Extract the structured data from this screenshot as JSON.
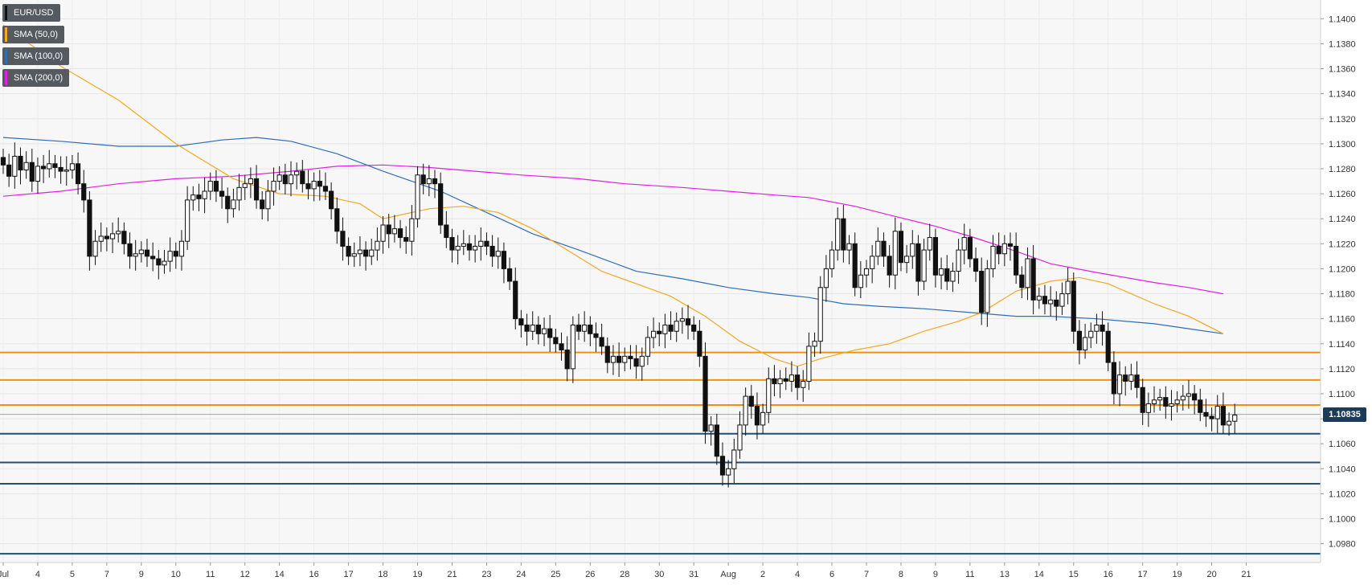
{
  "chart_data": {
    "type": "candlestick",
    "symbol": "EUR/USD",
    "last_price": "1.10835",
    "ylim": [
      1.0965,
      1.1415
    ],
    "y_ticks": [
      "1.1400",
      "1.1380",
      "1.1360",
      "1.1340",
      "1.1320",
      "1.1300",
      "1.1280",
      "1.1260",
      "1.1240",
      "1.1220",
      "1.1200",
      "1.1180",
      "1.1160",
      "1.1140",
      "1.1120",
      "1.1100",
      "1.1080",
      "1.1060",
      "1.1040",
      "1.1020",
      "1.1000",
      "1.0980"
    ],
    "x_ticks": [
      {
        "label": "Jul",
        "i": 0
      },
      {
        "label": "4",
        "i": 6
      },
      {
        "label": "5",
        "i": 12
      },
      {
        "label": "7",
        "i": 18
      },
      {
        "label": "9",
        "i": 24
      },
      {
        "label": "10",
        "i": 30
      },
      {
        "label": "11",
        "i": 36
      },
      {
        "label": "12",
        "i": 42
      },
      {
        "label": "14",
        "i": 48
      },
      {
        "label": "16",
        "i": 54
      },
      {
        "label": "17",
        "i": 60
      },
      {
        "label": "18",
        "i": 66
      },
      {
        "label": "19",
        "i": 72
      },
      {
        "label": "21",
        "i": 78
      },
      {
        "label": "23",
        "i": 84
      },
      {
        "label": "24",
        "i": 90
      },
      {
        "label": "25",
        "i": 96
      },
      {
        "label": "26",
        "i": 102
      },
      {
        "label": "28",
        "i": 108
      },
      {
        "label": "30",
        "i": 114
      },
      {
        "label": "31",
        "i": 120
      },
      {
        "label": "Aug",
        "i": 126
      },
      {
        "label": "2",
        "i": 132
      },
      {
        "label": "4",
        "i": 138
      },
      {
        "label": "6",
        "i": 144
      },
      {
        "label": "7",
        "i": 150
      },
      {
        "label": "8",
        "i": 156
      },
      {
        "label": "9",
        "i": 162
      },
      {
        "label": "11",
        "i": 168
      },
      {
        "label": "13",
        "i": 174
      },
      {
        "label": "14",
        "i": 180
      },
      {
        "label": "15",
        "i": 186
      },
      {
        "label": "16",
        "i": 192
      },
      {
        "label": "17",
        "i": 198
      },
      {
        "label": "19",
        "i": 204
      },
      {
        "label": "20",
        "i": 210
      },
      {
        "label": "21",
        "i": 216
      }
    ],
    "legend": [
      {
        "label": "EUR/USD",
        "color": "#111111"
      },
      {
        "label": "SMA (50,0)",
        "color": "#f5a623"
      },
      {
        "label": "SMA (100,0)",
        "color": "#2f6db5"
      },
      {
        "label": "SMA (200,0)",
        "color": "#e020e0"
      }
    ],
    "resistance_levels": [
      1.1133,
      1.1111,
      1.1091
    ],
    "support_levels": [
      1.1068,
      1.1045,
      1.1028,
      1.0972
    ],
    "closes": [
      1.1283,
      1.1274,
      1.129,
      1.1279,
      1.1285,
      1.127,
      1.1282,
      1.128,
      1.1284,
      1.1281,
      1.1278,
      1.1279,
      1.1284,
      1.1268,
      1.1255,
      1.121,
      1.1222,
      1.1226,
      1.1224,
      1.1228,
      1.123,
      1.122,
      1.121,
      1.1212,
      1.1215,
      1.121,
      1.1208,
      1.1203,
      1.1206,
      1.1214,
      1.121,
      1.1222,
      1.1255,
      1.1259,
      1.1256,
      1.1262,
      1.127,
      1.1262,
      1.1258,
      1.1248,
      1.1255,
      1.1265,
      1.1268,
      1.1272,
      1.1255,
      1.1248,
      1.1262,
      1.127,
      1.1275,
      1.1268,
      1.1275,
      1.1278,
      1.1268,
      1.1264,
      1.127,
      1.1266,
      1.1262,
      1.1248,
      1.123,
      1.1218,
      1.121,
      1.1212,
      1.1215,
      1.121,
      1.1215,
      1.1222,
      1.1235,
      1.1228,
      1.1232,
      1.1225,
      1.1222,
      1.124,
      1.1275,
      1.1268,
      1.1272,
      1.1268,
      1.1235,
      1.1225,
      1.1215,
      1.1218,
      1.122,
      1.1215,
      1.1218,
      1.1222,
      1.1218,
      1.121,
      1.1214,
      1.12,
      1.119,
      1.116,
      1.1155,
      1.115,
      1.1155,
      1.1148,
      1.1152,
      1.1145,
      1.114,
      1.1135,
      1.112,
      1.1155,
      1.115,
      1.1155,
      1.1148,
      1.1145,
      1.1138,
      1.1125,
      1.113,
      1.1125,
      1.113,
      1.1128,
      1.1122,
      1.113,
      1.1145,
      1.115,
      1.1148,
      1.1155,
      1.115,
      1.1158,
      1.116,
      1.1155,
      1.115,
      1.113,
      1.107,
      1.1075,
      1.105,
      1.1035,
      1.104,
      1.1055,
      1.1075,
      1.1098,
      1.109,
      1.1075,
      1.1085,
      1.1112,
      1.1108,
      1.1112,
      1.111,
      1.1115,
      1.1105,
      1.111,
      1.1138,
      1.1142,
      1.1185,
      1.12,
      1.1215,
      1.124,
      1.1215,
      1.122,
      1.1185,
      1.1195,
      1.12,
      1.121,
      1.1222,
      1.121,
      1.1195,
      1.123,
      1.1205,
      1.121,
      1.122,
      1.119,
      1.1215,
      1.1225,
      1.1195,
      1.12,
      1.119,
      1.1198,
      1.1215,
      1.1225,
      1.1208,
      1.1198,
      1.1165,
      1.12,
      1.1218,
      1.1212,
      1.122,
      1.1218,
      1.1195,
      1.1185,
      1.1208,
      1.1175,
      1.1178,
      1.1172,
      1.1175,
      1.117,
      1.118,
      1.119,
      1.115,
      1.1135,
      1.1145,
      1.115,
      1.1155,
      1.115,
      1.1125,
      1.11,
      1.1115,
      1.111,
      1.1115,
      1.1105,
      1.1085,
      1.1092,
      1.1095,
      1.1097,
      1.109,
      1.1092,
      1.1095,
      1.1098,
      1.11,
      1.1095,
      1.1085,
      1.1082,
      1.108,
      1.109,
      1.1075,
      1.1078,
      1.1083
    ],
    "sma50_pts": [
      [
        0,
        1.1395
      ],
      [
        10,
        1.1362
      ],
      [
        20,
        1.1335
      ],
      [
        30,
        1.13
      ],
      [
        40,
        1.1272
      ],
      [
        48,
        1.126
      ],
      [
        56,
        1.1258
      ],
      [
        62,
        1.1252
      ],
      [
        66,
        1.124
      ],
      [
        74,
        1.1248
      ],
      [
        80,
        1.125
      ],
      [
        86,
        1.1245
      ],
      [
        92,
        1.1232
      ],
      [
        98,
        1.1215
      ],
      [
        104,
        1.1198
      ],
      [
        110,
        1.1188
      ],
      [
        116,
        1.1178
      ],
      [
        122,
        1.1162
      ],
      [
        128,
        1.1142
      ],
      [
        134,
        1.1128
      ],
      [
        138,
        1.1122
      ],
      [
        142,
        1.1128
      ],
      [
        148,
        1.1135
      ],
      [
        154,
        1.114
      ],
      [
        160,
        1.115
      ],
      [
        166,
        1.1158
      ],
      [
        170,
        1.1165
      ],
      [
        176,
        1.1182
      ],
      [
        182,
        1.119
      ],
      [
        187,
        1.1193
      ],
      [
        192,
        1.1188
      ],
      [
        200,
        1.1172
      ],
      [
        206,
        1.1162
      ],
      [
        212,
        1.1148
      ]
    ],
    "sma100_pts": [
      [
        0,
        1.1305
      ],
      [
        10,
        1.1302
      ],
      [
        20,
        1.1298
      ],
      [
        30,
        1.1298
      ],
      [
        38,
        1.1303
      ],
      [
        44,
        1.1305
      ],
      [
        50,
        1.1302
      ],
      [
        58,
        1.1292
      ],
      [
        66,
        1.1278
      ],
      [
        76,
        1.1262
      ],
      [
        84,
        1.1245
      ],
      [
        92,
        1.1228
      ],
      [
        100,
        1.1215
      ],
      [
        110,
        1.1198
      ],
      [
        118,
        1.1192
      ],
      [
        126,
        1.1185
      ],
      [
        134,
        1.118
      ],
      [
        140,
        1.1177
      ],
      [
        146,
        1.1172
      ],
      [
        152,
        1.117
      ],
      [
        160,
        1.1168
      ],
      [
        168,
        1.1165
      ],
      [
        176,
        1.1162
      ],
      [
        182,
        1.1162
      ],
      [
        190,
        1.116
      ],
      [
        200,
        1.1156
      ],
      [
        206,
        1.1152
      ],
      [
        212,
        1.1148
      ]
    ],
    "sma200_pts": [
      [
        0,
        1.1258
      ],
      [
        10,
        1.1262
      ],
      [
        20,
        1.1268
      ],
      [
        30,
        1.1272
      ],
      [
        40,
        1.1274
      ],
      [
        50,
        1.1278
      ],
      [
        58,
        1.1282
      ],
      [
        66,
        1.1283
      ],
      [
        74,
        1.1281
      ],
      [
        82,
        1.1278
      ],
      [
        90,
        1.1275
      ],
      [
        100,
        1.1272
      ],
      [
        108,
        1.1268
      ],
      [
        118,
        1.1265
      ],
      [
        126,
        1.1262
      ],
      [
        134,
        1.1259
      ],
      [
        140,
        1.1257
      ],
      [
        148,
        1.125
      ],
      [
        154,
        1.1243
      ],
      [
        162,
        1.1234
      ],
      [
        168,
        1.1226
      ],
      [
        176,
        1.1214
      ],
      [
        182,
        1.1204
      ],
      [
        190,
        1.1197
      ],
      [
        200,
        1.1189
      ],
      [
        206,
        1.1185
      ],
      [
        212,
        1.118
      ]
    ]
  }
}
